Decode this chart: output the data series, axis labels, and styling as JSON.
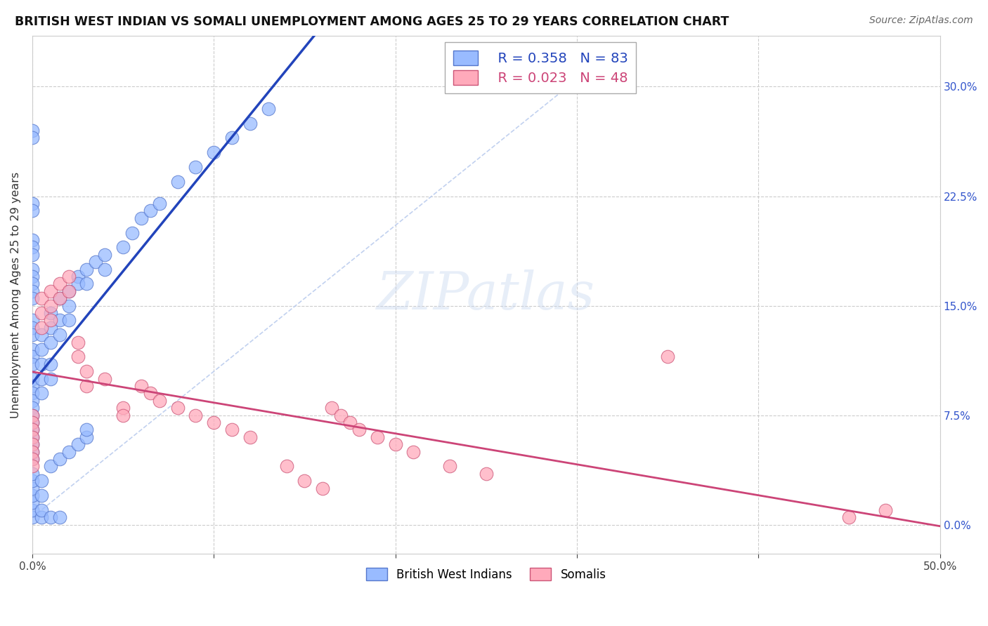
{
  "title": "BRITISH WEST INDIAN VS SOMALI UNEMPLOYMENT AMONG AGES 25 TO 29 YEARS CORRELATION CHART",
  "source": "Source: ZipAtlas.com",
  "ylabel": "Unemployment Among Ages 25 to 29 years",
  "xlim": [
    0.0,
    0.5
  ],
  "ylim": [
    -0.02,
    0.335
  ],
  "xticks": [
    0.0,
    0.1,
    0.2,
    0.3,
    0.4,
    0.5
  ],
  "xticklabels": [
    "0.0%",
    "",
    "",
    "",
    "",
    "50.0%"
  ],
  "yticks": [
    0.0,
    0.075,
    0.15,
    0.225,
    0.3
  ],
  "yticklabels_right": [
    "0.0%",
    "7.5%",
    "15.0%",
    "22.5%",
    "30.0%"
  ],
  "grid_color": "#cccccc",
  "background_color": "#ffffff",
  "bwi_color": "#99bbff",
  "bwi_edge_color": "#5577cc",
  "somali_color": "#ffaabb",
  "somali_edge_color": "#cc5577",
  "bwi_trend_color": "#2244bb",
  "somali_trend_color": "#cc4477",
  "dashed_line_color": "#bbccee",
  "right_label_color": "#3355cc",
  "legend_R_bwi": "R = 0.358",
  "legend_N_bwi": "N = 83",
  "legend_R_somali": "R = 0.023",
  "legend_N_somali": "N = 48",
  "legend_label_bwi": "British West Indians",
  "legend_label_somali": "Somalis",
  "bwi_x": [
    0.0,
    0.0,
    0.0,
    0.0,
    0.0,
    0.0,
    0.0,
    0.0,
    0.0,
    0.0,
    0.0,
    0.0,
    0.0,
    0.0,
    0.0,
    0.0,
    0.0,
    0.0,
    0.0,
    0.0,
    0.0,
    0.0,
    0.0,
    0.0,
    0.0,
    0.0,
    0.0,
    0.0,
    0.0,
    0.0,
    0.005,
    0.005,
    0.005,
    0.005,
    0.005,
    0.01,
    0.01,
    0.01,
    0.01,
    0.01,
    0.015,
    0.015,
    0.015,
    0.02,
    0.02,
    0.02,
    0.025,
    0.025,
    0.03,
    0.03,
    0.035,
    0.04,
    0.04,
    0.05,
    0.055,
    0.06,
    0.065,
    0.07,
    0.08,
    0.09,
    0.1,
    0.11,
    0.12,
    0.13,
    0.0,
    0.0,
    0.0,
    0.005,
    0.005,
    0.01,
    0.015,
    0.0,
    0.0,
    0.005,
    0.0,
    0.0,
    0.005,
    0.01,
    0.015,
    0.02,
    0.025,
    0.03,
    0.03
  ],
  "bwi_y": [
    0.27,
    0.265,
    0.22,
    0.215,
    0.195,
    0.19,
    0.185,
    0.175,
    0.17,
    0.165,
    0.16,
    0.155,
    0.14,
    0.135,
    0.13,
    0.12,
    0.115,
    0.11,
    0.1,
    0.095,
    0.09,
    0.085,
    0.08,
    0.075,
    0.07,
    0.065,
    0.06,
    0.055,
    0.05,
    0.045,
    0.13,
    0.12,
    0.11,
    0.1,
    0.09,
    0.145,
    0.135,
    0.125,
    0.11,
    0.1,
    0.155,
    0.14,
    0.13,
    0.16,
    0.15,
    0.14,
    0.17,
    0.165,
    0.175,
    0.165,
    0.18,
    0.185,
    0.175,
    0.19,
    0.2,
    0.21,
    0.215,
    0.22,
    0.235,
    0.245,
    0.255,
    0.265,
    0.275,
    0.285,
    0.005,
    0.01,
    0.015,
    0.005,
    0.01,
    0.005,
    0.005,
    0.02,
    0.025,
    0.02,
    0.03,
    0.035,
    0.03,
    0.04,
    0.045,
    0.05,
    0.055,
    0.06,
    0.065
  ],
  "somali_x": [
    0.0,
    0.0,
    0.0,
    0.0,
    0.0,
    0.0,
    0.0,
    0.0,
    0.005,
    0.005,
    0.005,
    0.01,
    0.01,
    0.01,
    0.015,
    0.015,
    0.02,
    0.02,
    0.025,
    0.025,
    0.03,
    0.03,
    0.04,
    0.05,
    0.05,
    0.06,
    0.065,
    0.07,
    0.08,
    0.09,
    0.1,
    0.11,
    0.12,
    0.14,
    0.15,
    0.16,
    0.165,
    0.17,
    0.175,
    0.18,
    0.19,
    0.2,
    0.21,
    0.23,
    0.25,
    0.35,
    0.45,
    0.47
  ],
  "somali_y": [
    0.075,
    0.07,
    0.065,
    0.06,
    0.055,
    0.05,
    0.045,
    0.04,
    0.155,
    0.145,
    0.135,
    0.16,
    0.15,
    0.14,
    0.165,
    0.155,
    0.17,
    0.16,
    0.125,
    0.115,
    0.105,
    0.095,
    0.1,
    0.08,
    0.075,
    0.095,
    0.09,
    0.085,
    0.08,
    0.075,
    0.07,
    0.065,
    0.06,
    0.04,
    0.03,
    0.025,
    0.08,
    0.075,
    0.07,
    0.065,
    0.06,
    0.055,
    0.05,
    0.04,
    0.035,
    0.115,
    0.005,
    0.01
  ]
}
